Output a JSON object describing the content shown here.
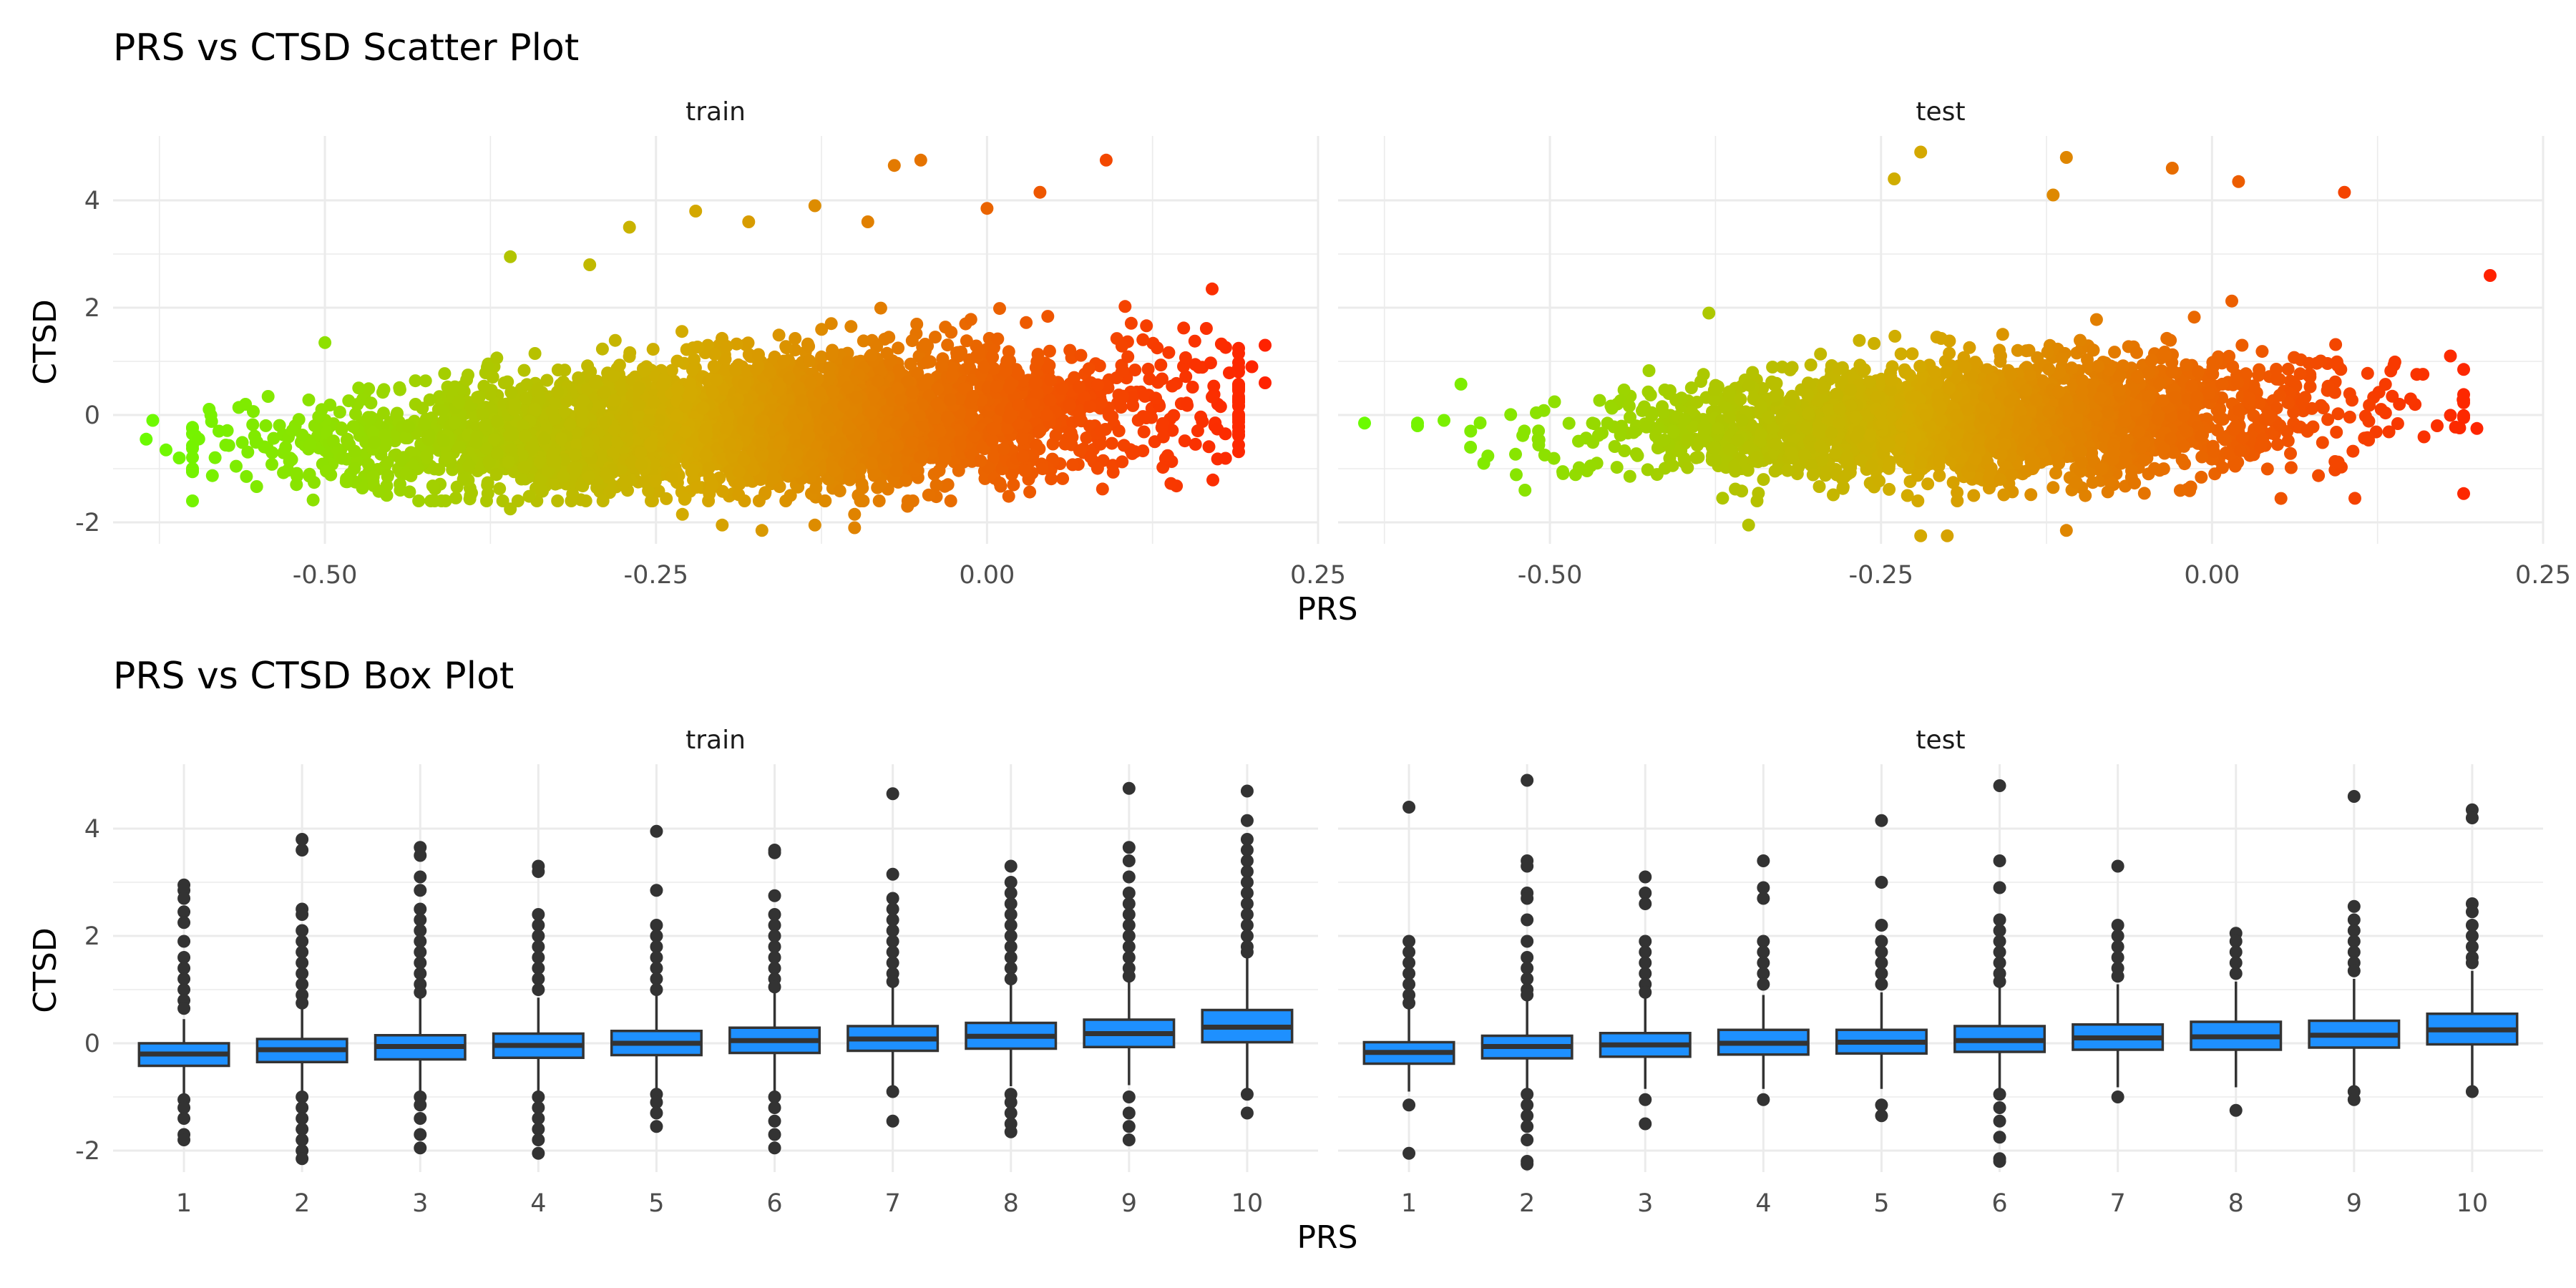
{
  "chart_data": [
    {
      "type": "scatter",
      "title": "PRS vs CTSD Scatter Plot",
      "xlabel": "PRS",
      "ylabel": "CTSD",
      "facets": [
        "train",
        "test"
      ],
      "xlim": [
        -0.66,
        0.25
      ],
      "ylim": [
        -2.4,
        5.2
      ],
      "x_ticks": [
        -0.5,
        -0.25,
        0.0,
        0.25
      ],
      "x_tick_labels": [
        "-0.50",
        "-0.25",
        "0.00",
        "0.25"
      ],
      "y_ticks": [
        -2,
        0,
        2,
        4
      ],
      "y_tick_labels": [
        "-2",
        "0",
        "2",
        "4"
      ],
      "color_scale": {
        "low": "#66ff00",
        "mid": "#d4aa00",
        "high": "#ff2200",
        "mapped_to": "PRS"
      },
      "grid": true,
      "panels": [
        {
          "name": "train",
          "trend": {
            "slope": 1.1,
            "intercept": 0.05,
            "spread": 0.55,
            "x_mean": -0.18,
            "x_sd": 0.15,
            "n": 4200
          },
          "outliers": [
            [
              -0.63,
              -0.1
            ],
            [
              -0.635,
              -0.45
            ],
            [
              -0.62,
              -0.65
            ],
            [
              -0.61,
              -0.8
            ],
            [
              -0.58,
              -0.3
            ],
            [
              -0.56,
              0.2
            ],
            [
              -0.5,
              1.35
            ],
            [
              -0.36,
              2.95
            ],
            [
              -0.3,
              2.8
            ],
            [
              -0.27,
              3.5
            ],
            [
              -0.22,
              3.8
            ],
            [
              -0.18,
              3.6
            ],
            [
              -0.13,
              3.9
            ],
            [
              -0.09,
              3.6
            ],
            [
              -0.07,
              4.65
            ],
            [
              -0.05,
              4.75
            ],
            [
              0.0,
              3.85
            ],
            [
              0.04,
              4.15
            ],
            [
              0.09,
              4.75
            ],
            [
              0.17,
              2.35
            ],
            [
              0.19,
              1.15
            ],
            [
              0.21,
              1.3
            ],
            [
              0.21,
              0.6
            ],
            [
              0.2,
              0.9
            ],
            [
              0.19,
              0.3
            ],
            [
              0.18,
              -0.35
            ],
            [
              -0.36,
              -1.75
            ],
            [
              -0.29,
              -1.6
            ],
            [
              -0.23,
              -1.85
            ],
            [
              -0.2,
              -2.05
            ],
            [
              -0.17,
              -2.15
            ],
            [
              -0.13,
              -2.05
            ],
            [
              -0.1,
              -2.1
            ],
            [
              -0.1,
              -1.85
            ],
            [
              -0.06,
              -1.7
            ],
            [
              0.02,
              -1.3
            ],
            [
              -0.42,
              -1.6
            ]
          ]
        },
        {
          "name": "test",
          "trend": {
            "slope": 0.85,
            "intercept": 0.05,
            "spread": 0.5,
            "x_mean": -0.18,
            "x_sd": 0.13,
            "n": 2600
          },
          "outliers": [
            [
              -0.6,
              -0.15
            ],
            [
              -0.6,
              -0.2
            ],
            [
              -0.58,
              -0.1
            ],
            [
              -0.56,
              -0.6
            ],
            [
              -0.55,
              -0.9
            ],
            [
              -0.64,
              -0.15
            ],
            [
              -0.38,
              1.9
            ],
            [
              -0.24,
              4.4
            ],
            [
              -0.22,
              4.9
            ],
            [
              -0.12,
              4.1
            ],
            [
              -0.11,
              4.8
            ],
            [
              -0.03,
              4.6
            ],
            [
              0.02,
              4.35
            ],
            [
              0.1,
              4.15
            ],
            [
              0.21,
              2.6
            ],
            [
              0.2,
              -0.25
            ],
            [
              -0.22,
              -2.25
            ],
            [
              -0.2,
              -2.25
            ],
            [
              -0.11,
              -2.15
            ],
            [
              -0.35,
              -2.05
            ],
            [
              -0.23,
              -1.5
            ],
            [
              -0.18,
              -1.5
            ],
            [
              -0.16,
              -1.2
            ],
            [
              -0.12,
              -1.35
            ],
            [
              0.17,
              -0.2
            ],
            [
              0.15,
              0.3
            ],
            [
              0.18,
              1.1
            ],
            [
              0.19,
              0.85
            ]
          ]
        }
      ]
    },
    {
      "type": "box",
      "title": "PRS vs CTSD Box Plot",
      "xlabel": "PRS",
      "ylabel": "CTSD",
      "facets": [
        "train",
        "test"
      ],
      "categories": [
        "1",
        "2",
        "3",
        "4",
        "5",
        "6",
        "7",
        "8",
        "9",
        "10"
      ],
      "ylim": [
        -2.4,
        5.2
      ],
      "y_ticks": [
        -2,
        0,
        2,
        4
      ],
      "y_tick_labels": [
        "-2",
        "0",
        "2",
        "4"
      ],
      "box_color": "#1e90ff",
      "grid": true,
      "panels": [
        {
          "name": "train",
          "boxes": [
            {
              "q1": -0.42,
              "median": -0.2,
              "q3": 0.0,
              "lower": -0.98,
              "upper": 0.45,
              "outliers": [
                2.95,
                2.85,
                2.7,
                2.45,
                2.25,
                1.9,
                1.6,
                1.4,
                1.2,
                1.0,
                0.8,
                0.65,
                -1.05,
                -1.2,
                -1.4,
                -1.7,
                -1.8
              ]
            },
            {
              "q1": -0.35,
              "median": -0.12,
              "q3": 0.08,
              "lower": -0.95,
              "upper": 0.65,
              "outliers": [
                3.8,
                3.6,
                2.5,
                2.4,
                2.1,
                1.9,
                1.7,
                1.5,
                1.3,
                1.1,
                0.9,
                0.75,
                -1.0,
                -1.2,
                -1.4,
                -1.6,
                -1.8,
                -2.0,
                -2.15
              ]
            },
            {
              "q1": -0.3,
              "median": -0.06,
              "q3": 0.15,
              "lower": -0.95,
              "upper": 0.85,
              "outliers": [
                3.65,
                3.5,
                3.1,
                2.85,
                2.5,
                2.3,
                2.1,
                1.9,
                1.7,
                1.5,
                1.3,
                1.1,
                0.95,
                -1.0,
                -1.15,
                -1.4,
                -1.7,
                -1.95
              ]
            },
            {
              "q1": -0.27,
              "median": -0.04,
              "q3": 0.18,
              "lower": -0.95,
              "upper": 0.85,
              "outliers": [
                3.3,
                3.2,
                2.4,
                2.2,
                2.0,
                1.8,
                1.6,
                1.4,
                1.2,
                1.0,
                -1.0,
                -1.2,
                -1.4,
                -1.6,
                -1.8,
                -2.05
              ]
            },
            {
              "q1": -0.22,
              "median": 0.0,
              "q3": 0.23,
              "lower": -0.9,
              "upper": 0.9,
              "outliers": [
                3.95,
                2.85,
                2.2,
                2.0,
                1.8,
                1.6,
                1.4,
                1.2,
                1.0,
                -0.95,
                -1.1,
                -1.3,
                -1.55
              ]
            },
            {
              "q1": -0.18,
              "median": 0.05,
              "q3": 0.29,
              "lower": -0.9,
              "upper": 1.0,
              "outliers": [
                3.6,
                3.55,
                2.75,
                2.4,
                2.2,
                2.0,
                1.8,
                1.6,
                1.4,
                1.2,
                1.05,
                -1.0,
                -1.2,
                -1.45,
                -1.7,
                -1.95
              ]
            },
            {
              "q1": -0.14,
              "median": 0.08,
              "q3": 0.32,
              "lower": -0.85,
              "upper": 1.05,
              "outliers": [
                4.65,
                3.15,
                2.7,
                2.5,
                2.3,
                2.1,
                1.9,
                1.7,
                1.5,
                1.3,
                1.15,
                -0.9,
                -1.45
              ]
            },
            {
              "q1": -0.1,
              "median": 0.13,
              "q3": 0.38,
              "lower": -0.8,
              "upper": 1.1,
              "outliers": [
                3.3,
                3.0,
                2.8,
                2.6,
                2.4,
                2.2,
                2.0,
                1.8,
                1.6,
                1.4,
                1.2,
                -0.95,
                -1.1,
                -1.3,
                -1.5,
                -1.65
              ]
            },
            {
              "q1": -0.07,
              "median": 0.18,
              "q3": 0.44,
              "lower": -0.78,
              "upper": 1.15,
              "outliers": [
                4.75,
                3.65,
                3.4,
                3.1,
                2.8,
                2.6,
                2.4,
                2.2,
                2.0,
                1.8,
                1.6,
                1.4,
                1.25,
                -1.0,
                -1.3,
                -1.55,
                -1.8
              ]
            },
            {
              "q1": 0.02,
              "median": 0.3,
              "q3": 0.62,
              "lower": -0.9,
              "upper": 1.6,
              "outliers": [
                4.7,
                4.15,
                3.8,
                3.6,
                3.4,
                3.2,
                3.0,
                2.8,
                2.6,
                2.4,
                2.2,
                2.0,
                1.8,
                1.7,
                -0.95,
                -1.3
              ]
            }
          ]
        },
        {
          "name": "test",
          "boxes": [
            {
              "q1": -0.38,
              "median": -0.17,
              "q3": 0.02,
              "lower": -0.9,
              "upper": 0.65,
              "outliers": [
                4.4,
                1.9,
                1.7,
                1.5,
                1.3,
                1.1,
                0.9,
                0.75,
                -1.15,
                -2.05
              ]
            },
            {
              "q1": -0.28,
              "median": -0.06,
              "q3": 0.14,
              "lower": -0.9,
              "upper": 0.8,
              "outliers": [
                4.9,
                3.4,
                3.3,
                2.8,
                2.7,
                2.3,
                1.9,
                1.6,
                1.4,
                1.2,
                1.0,
                0.9,
                -0.95,
                -1.15,
                -1.35,
                -1.55,
                -1.8,
                -2.2,
                -2.25
              ]
            },
            {
              "q1": -0.25,
              "median": -0.03,
              "q3": 0.19,
              "lower": -0.85,
              "upper": 0.85,
              "outliers": [
                3.1,
                2.8,
                2.6,
                1.9,
                1.7,
                1.5,
                1.3,
                1.1,
                0.95,
                -1.05,
                -1.5
              ]
            },
            {
              "q1": -0.21,
              "median": 0.0,
              "q3": 0.25,
              "lower": -0.85,
              "upper": 0.9,
              "outliers": [
                3.4,
                2.9,
                2.7,
                1.9,
                1.7,
                1.5,
                1.3,
                1.1,
                -1.05
              ]
            },
            {
              "q1": -0.19,
              "median": 0.02,
              "q3": 0.25,
              "lower": -0.85,
              "upper": 0.95,
              "outliers": [
                4.15,
                3.0,
                2.2,
                1.9,
                1.7,
                1.5,
                1.3,
                1.1,
                -1.15,
                -1.35
              ]
            },
            {
              "q1": -0.16,
              "median": 0.05,
              "q3": 0.32,
              "lower": -0.85,
              "upper": 1.05,
              "outliers": [
                4.8,
                3.4,
                2.9,
                2.3,
                2.1,
                1.9,
                1.7,
                1.5,
                1.3,
                1.15,
                -0.95,
                -1.2,
                -1.45,
                -1.75,
                -2.15,
                -2.2
              ]
            },
            {
              "q1": -0.12,
              "median": 0.1,
              "q3": 0.35,
              "lower": -0.82,
              "upper": 1.1,
              "outliers": [
                3.3,
                2.2,
                2.0,
                1.8,
                1.6,
                1.4,
                1.25,
                -1.0
              ]
            },
            {
              "q1": -0.12,
              "median": 0.12,
              "q3": 0.4,
              "lower": -0.82,
              "upper": 1.15,
              "outliers": [
                2.05,
                1.9,
                1.7,
                1.5,
                1.3,
                -1.25
              ]
            },
            {
              "q1": -0.08,
              "median": 0.15,
              "q3": 0.42,
              "lower": -0.8,
              "upper": 1.2,
              "outliers": [
                4.6,
                2.55,
                2.3,
                2.1,
                1.9,
                1.7,
                1.5,
                1.35,
                -0.9,
                -1.05
              ]
            },
            {
              "q1": -0.02,
              "median": 0.25,
              "q3": 0.55,
              "lower": -0.88,
              "upper": 1.35,
              "outliers": [
                4.35,
                4.2,
                2.6,
                2.45,
                2.2,
                2.0,
                1.8,
                1.6,
                1.5,
                -0.9
              ]
            }
          ]
        }
      ]
    }
  ]
}
